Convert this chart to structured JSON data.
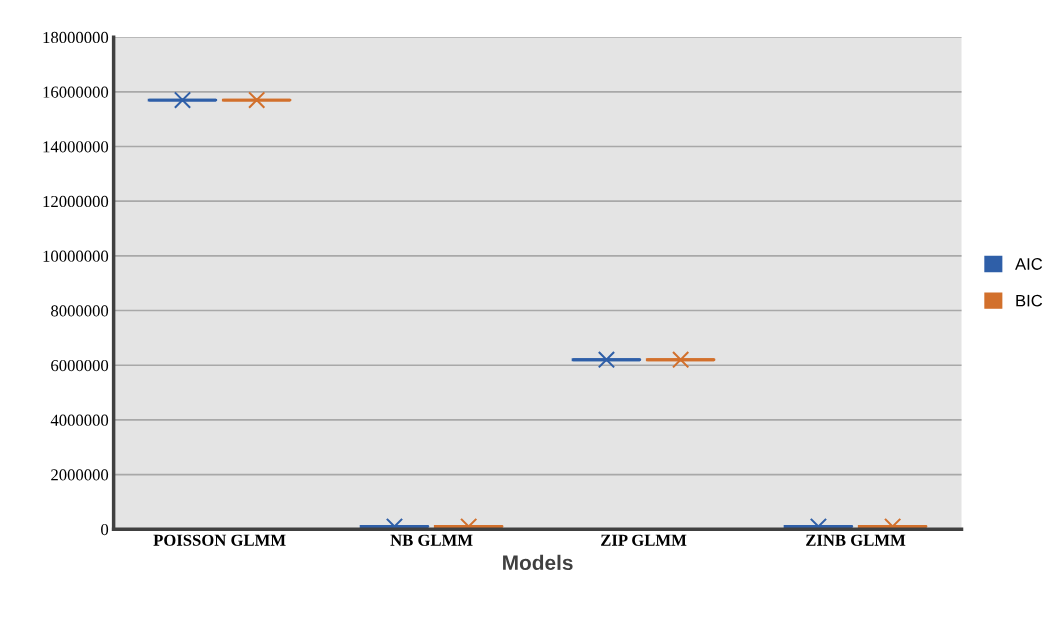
{
  "chart_data": {
    "type": "box",
    "xlabel": "Models",
    "categories": [
      "POISSON GLMM",
      "NB GLMM",
      "ZIP GLMM",
      "ZINB GLMM"
    ],
    "series": [
      {
        "name": "AIC",
        "color": "#2f5fa8",
        "boxes": [
          {
            "low": 15700000,
            "q1": 15700000,
            "median": 15700000,
            "q3": 15700000,
            "high": 15700000,
            "mean": 15700000
          },
          {
            "low": 100000,
            "q1": 100000,
            "median": 100000,
            "q3": 100000,
            "high": 100000,
            "mean": 100000
          },
          {
            "low": 6200000,
            "q1": 6200000,
            "median": 6200000,
            "q3": 6200000,
            "high": 6200000,
            "mean": 6200000
          },
          {
            "low": 100000,
            "q1": 100000,
            "median": 100000,
            "q3": 100000,
            "high": 100000,
            "mean": 100000
          }
        ]
      },
      {
        "name": "BIC",
        "color": "#d2702c",
        "boxes": [
          {
            "low": 15700000,
            "q1": 15700000,
            "median": 15700000,
            "q3": 15700000,
            "high": 15700000,
            "mean": 15700000
          },
          {
            "low": 100000,
            "q1": 100000,
            "median": 100000,
            "q3": 100000,
            "high": 100000,
            "mean": 100000
          },
          {
            "low": 6200000,
            "q1": 6200000,
            "median": 6200000,
            "q3": 6200000,
            "high": 6200000,
            "mean": 6200000
          },
          {
            "low": 100000,
            "q1": 100000,
            "median": 100000,
            "q3": 100000,
            "high": 100000,
            "mean": 100000
          }
        ]
      }
    ],
    "ylim": [
      0,
      18000000
    ],
    "yticks": [
      0,
      2000000,
      4000000,
      6000000,
      8000000,
      10000000,
      12000000,
      14000000,
      16000000,
      18000000
    ],
    "grid": "y",
    "legend": "right",
    "marker": "cross"
  }
}
